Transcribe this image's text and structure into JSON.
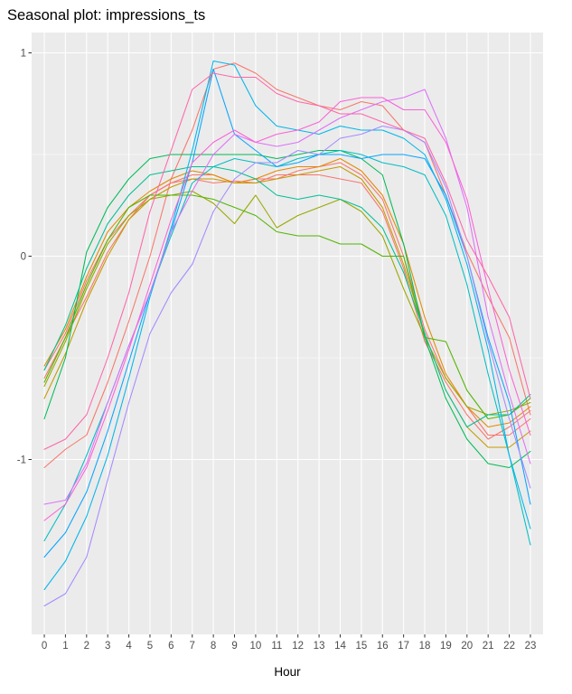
{
  "chart_data": {
    "type": "line",
    "title": "Seasonal plot: impressions_ts",
    "xlabel": "Hour",
    "ylabel": "",
    "x": [
      0,
      1,
      2,
      3,
      4,
      5,
      6,
      7,
      8,
      9,
      10,
      11,
      12,
      13,
      14,
      15,
      16,
      17,
      18,
      19,
      20,
      21,
      22,
      23
    ],
    "x_tick_labels": [
      "0",
      "1",
      "2",
      "3",
      "4",
      "5",
      "6",
      "7",
      "8",
      "9",
      "10",
      "11",
      "12",
      "13",
      "14",
      "15",
      "16",
      "17",
      "18",
      "19",
      "20",
      "21",
      "22",
      "23"
    ],
    "y_ticks": [
      -1,
      0,
      1
    ],
    "y_tick_labels": [
      "-1",
      "0",
      "1"
    ],
    "xlim": [
      -0.6,
      23.6
    ],
    "ylim": [
      -1.86,
      1.1
    ],
    "grid": true,
    "legend": "none",
    "panel_background": "#ebebeb",
    "grid_color": "#ffffff",
    "series": [
      {
        "color": "#F8766D",
        "values": [
          -1.04,
          -0.95,
          -0.88,
          -0.62,
          -0.32,
          0.0,
          0.38,
          0.62,
          0.92,
          0.95,
          0.9,
          0.82,
          0.78,
          0.74,
          0.72,
          0.76,
          0.74,
          0.62,
          0.56,
          0.3,
          0.02,
          -0.2,
          -0.4,
          -0.78
        ]
      },
      {
        "color": "#F8766D",
        "values": [
          -0.56,
          -0.38,
          -0.12,
          0.08,
          0.2,
          0.3,
          0.36,
          0.38,
          0.36,
          0.37,
          0.36,
          0.4,
          0.4,
          0.4,
          0.38,
          0.36,
          0.22,
          -0.06,
          -0.42,
          -0.62,
          -0.78,
          -0.9,
          -0.84,
          -0.76
        ]
      },
      {
        "color": "#F8766D",
        "values": [
          -0.6,
          -0.4,
          -0.2,
          0.02,
          0.18,
          0.3,
          0.36,
          0.4,
          0.4,
          0.36,
          0.38,
          0.38,
          0.42,
          0.44,
          0.46,
          0.4,
          0.28,
          0.0,
          -0.36,
          -0.6,
          -0.74,
          -0.88,
          -0.88,
          -0.8
        ]
      },
      {
        "color": "#E38900",
        "values": [
          -0.54,
          -0.36,
          -0.1,
          0.12,
          0.24,
          0.32,
          0.38,
          0.42,
          0.4,
          0.36,
          0.38,
          0.42,
          0.44,
          0.44,
          0.48,
          0.42,
          0.3,
          0.06,
          -0.3,
          -0.58,
          -0.74,
          -0.84,
          -0.82,
          -0.74
        ]
      },
      {
        "color": "#C49A00",
        "values": [
          -0.7,
          -0.48,
          -0.22,
          0.0,
          0.18,
          0.28,
          0.34,
          0.38,
          0.38,
          0.36,
          0.36,
          0.38,
          0.4,
          0.42,
          0.44,
          0.38,
          0.24,
          -0.04,
          -0.38,
          -0.66,
          -0.84,
          -0.94,
          -0.94,
          -0.86
        ]
      },
      {
        "color": "#99A800",
        "values": [
          -0.64,
          -0.42,
          -0.16,
          0.06,
          0.2,
          0.28,
          0.3,
          0.32,
          0.26,
          0.16,
          0.3,
          0.14,
          0.2,
          0.24,
          0.28,
          0.22,
          0.1,
          -0.16,
          -0.4,
          -0.6,
          -0.74,
          -0.78,
          -0.76,
          -0.72
        ]
      },
      {
        "color": "#53B400",
        "values": [
          -0.62,
          -0.4,
          -0.14,
          0.08,
          0.24,
          0.3,
          0.3,
          0.3,
          0.28,
          0.24,
          0.2,
          0.12,
          0.1,
          0.1,
          0.06,
          0.06,
          0.0,
          0.0,
          -0.4,
          -0.42,
          -0.66,
          -0.8,
          -0.78,
          -0.7
        ]
      },
      {
        "color": "#00BC56",
        "values": [
          -0.8,
          -0.5,
          0.02,
          0.24,
          0.38,
          0.48,
          0.5,
          0.5,
          0.5,
          0.5,
          0.5,
          0.48,
          0.5,
          0.52,
          0.52,
          0.48,
          0.4,
          0.06,
          -0.4,
          -0.7,
          -0.9,
          -1.02,
          -1.04,
          -0.96
        ]
      },
      {
        "color": "#00C094",
        "values": [
          -0.56,
          -0.34,
          -0.06,
          0.16,
          0.3,
          0.4,
          0.42,
          0.44,
          0.44,
          0.42,
          0.38,
          0.3,
          0.28,
          0.3,
          0.28,
          0.24,
          0.14,
          -0.08,
          -0.38,
          -0.66,
          -0.84,
          -0.78,
          -0.78,
          -0.68
        ]
      },
      {
        "color": "#00BFC4",
        "values": [
          -1.4,
          -1.22,
          -0.98,
          -0.72,
          -0.44,
          -0.18,
          0.1,
          0.36,
          0.44,
          0.48,
          0.46,
          0.44,
          0.48,
          0.5,
          0.52,
          0.5,
          0.46,
          0.44,
          0.4,
          0.2,
          -0.14,
          -0.58,
          -0.98,
          -1.42
        ]
      },
      {
        "color": "#00B6EB",
        "values": [
          -1.64,
          -1.5,
          -1.28,
          -0.98,
          -0.6,
          -0.2,
          0.14,
          0.52,
          0.96,
          0.94,
          0.74,
          0.64,
          0.62,
          0.6,
          0.64,
          0.62,
          0.62,
          0.58,
          0.5,
          0.28,
          -0.04,
          -0.46,
          -0.98,
          -1.34
        ]
      },
      {
        "color": "#06A4FF",
        "values": [
          -1.48,
          -1.36,
          -1.16,
          -0.86,
          -0.52,
          -0.18,
          0.12,
          0.46,
          0.92,
          0.6,
          0.52,
          0.44,
          0.46,
          0.5,
          0.5,
          0.48,
          0.5,
          0.5,
          0.48,
          0.3,
          0.0,
          -0.4,
          -0.72,
          -1.22
        ]
      },
      {
        "color": "#A58AFF",
        "values": [
          -1.72,
          -1.66,
          -1.48,
          -1.1,
          -0.72,
          -0.38,
          -0.18,
          -0.04,
          0.22,
          0.38,
          0.46,
          0.46,
          0.52,
          0.5,
          0.58,
          0.6,
          0.64,
          0.62,
          0.56,
          0.34,
          0.0,
          -0.42,
          -0.8,
          -1.14
        ]
      },
      {
        "color": "#DF70F8",
        "values": [
          -1.22,
          -1.2,
          -1.02,
          -0.72,
          -0.44,
          -0.18,
          0.12,
          0.32,
          0.5,
          0.6,
          0.56,
          0.54,
          0.56,
          0.62,
          0.68,
          0.72,
          0.76,
          0.78,
          0.82,
          0.58,
          0.24,
          -0.3,
          -0.68,
          -1.02
        ]
      },
      {
        "color": "#FB61D7",
        "values": [
          -1.3,
          -1.22,
          -1.04,
          -0.76,
          -0.46,
          -0.14,
          0.18,
          0.46,
          0.56,
          0.62,
          0.56,
          0.6,
          0.62,
          0.66,
          0.76,
          0.78,
          0.78,
          0.72,
          0.72,
          0.56,
          0.28,
          -0.16,
          -0.56,
          -0.88
        ]
      },
      {
        "color": "#FF66A8",
        "values": [
          -0.95,
          -0.9,
          -0.78,
          -0.5,
          -0.18,
          0.22,
          0.52,
          0.82,
          0.9,
          0.88,
          0.88,
          0.8,
          0.76,
          0.74,
          0.7,
          0.7,
          0.66,
          0.62,
          0.58,
          0.36,
          0.08,
          -0.1,
          -0.3,
          -0.7
        ]
      }
    ]
  }
}
